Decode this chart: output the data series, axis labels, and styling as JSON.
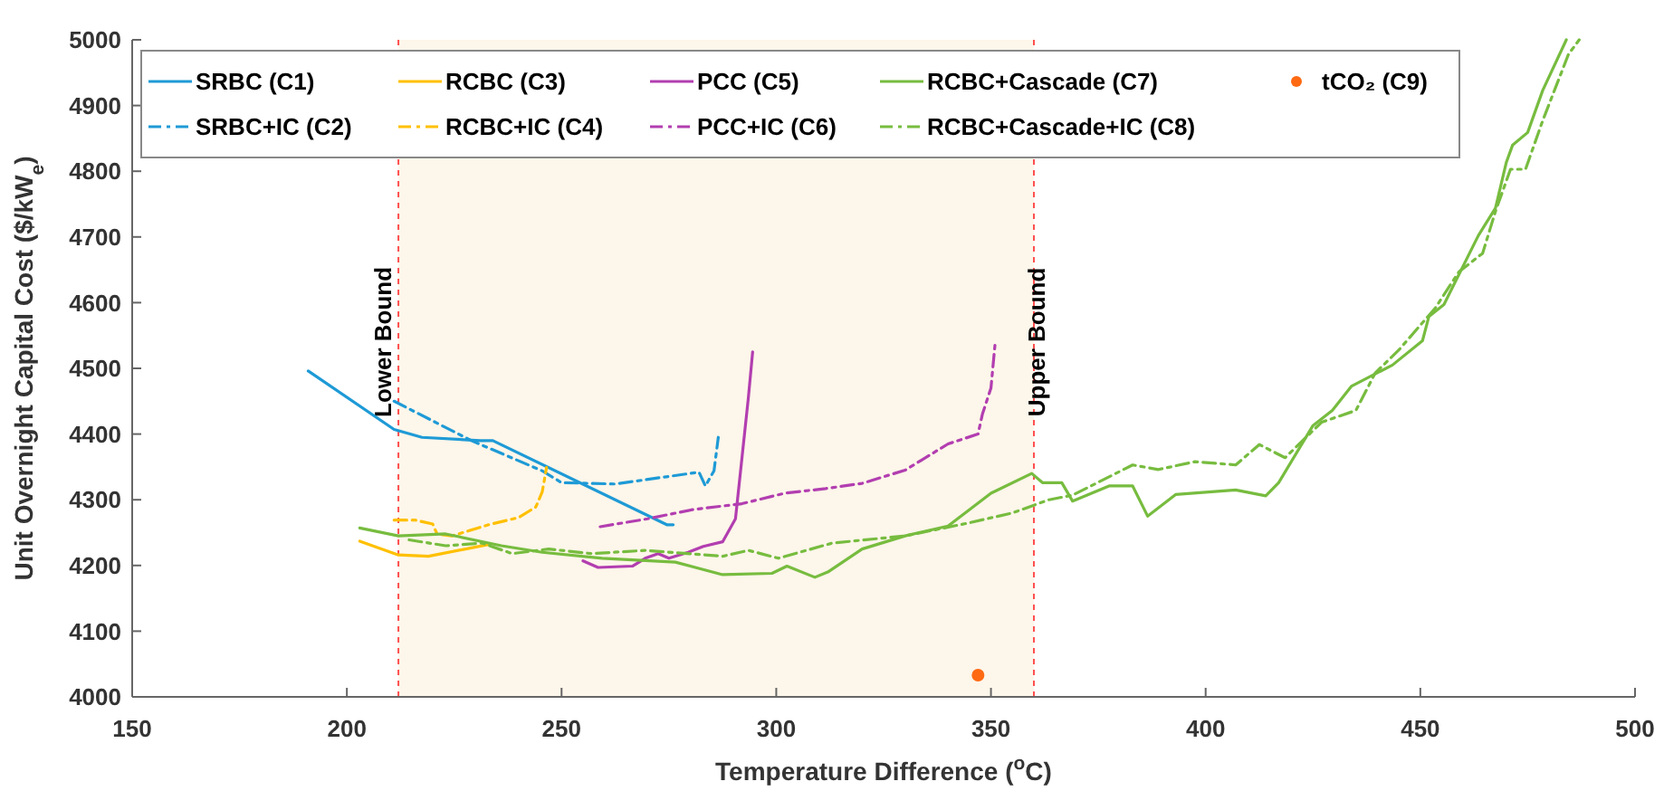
{
  "chart_data": {
    "type": "line",
    "xlabel": "Temperature Difference ($^{o}$C)",
    "ylabel": "Unit Overnight Capital Cost ($/kW$_{e}$)",
    "xlim": [
      150,
      500
    ],
    "xticks": [
      150,
      200,
      250,
      300,
      350,
      400,
      450,
      500
    ],
    "ylim": [
      4000,
      5000
    ],
    "yticks": [
      4000,
      4100,
      4200,
      4300,
      4400,
      4500,
      4600,
      4700,
      4800,
      4900,
      5000
    ],
    "grid": false,
    "legend": "top",
    "marker": "none",
    "bands": [
      {
        "axis": "x",
        "from": 212,
        "to": 360,
        "color": "#fdf6ea"
      }
    ],
    "ref_lines": [
      {
        "axis": "x",
        "value": 212,
        "label": "Lower Bound",
        "color": "#ff5050",
        "line_style": "dashed"
      },
      {
        "axis": "x",
        "value": 360,
        "label": "Upper Bound",
        "color": "#ff5050",
        "line_style": "dashed"
      }
    ],
    "series": [
      {
        "name": "SRBC (C1)",
        "color": "#1e9ad6",
        "line_style": "solid",
        "x": [
          191,
          211,
          217.5,
          231,
          234,
          274.5,
          276
        ],
        "values": [
          4496,
          4407,
          4395,
          4390,
          4390,
          4262,
          4262
        ]
      },
      {
        "name": "SRBC+IC (C2)",
        "color": "#1e9ad6",
        "line_style": "dashed",
        "x": [
          211,
          229,
          245.5,
          250,
          262.5,
          282,
          283.5,
          285.5,
          286.5
        ],
        "values": [
          4450,
          4390,
          4344,
          4326,
          4324,
          4342,
          4321,
          4344,
          4395
        ]
      },
      {
        "name": "RCBC (C3)",
        "color": "#ffc000",
        "line_style": "solid",
        "x": [
          203,
          212,
          219,
          233
        ],
        "values": [
          4237,
          4216,
          4214,
          4232
        ]
      },
      {
        "name": "RCBC+IC (C4)",
        "color": "#ffc000",
        "line_style": "dashed",
        "x": [
          211,
          216,
          220,
          221,
          224.5,
          233,
          240,
          244,
          245.5,
          246.5
        ],
        "values": [
          4269,
          4269,
          4263,
          4248,
          4245,
          4262,
          4273,
          4289,
          4312,
          4349
        ]
      },
      {
        "name": "PCC (C5)",
        "color": "#b23eb0",
        "line_style": "solid",
        "x": [
          255,
          258.5,
          266.5,
          269.5,
          272.5,
          275,
          279.5,
          283,
          287.5,
          290.5,
          292,
          293.5,
          294.5
        ],
        "values": [
          4207,
          4197,
          4199,
          4211,
          4218,
          4211,
          4220,
          4229,
          4236,
          4271,
          4363,
          4455,
          4525
        ]
      },
      {
        "name": "PCC+IC (C6)",
        "color": "#b23eb0",
        "line_style": "dashed",
        "x": [
          259,
          270,
          280.5,
          292,
          302,
          311.5,
          320,
          330,
          340,
          347,
          348,
          350,
          351
        ],
        "values": [
          4259,
          4271,
          4285,
          4294,
          4310,
          4317,
          4325,
          4345,
          4385,
          4400,
          4430,
          4470,
          4540
        ]
      },
      {
        "name": "RCBC+Cascade (C7)",
        "color": "#77bc3f",
        "line_style": "solid",
        "x": [
          203,
          212,
          223,
          236,
          245.5,
          259.5,
          276.5,
          287.5,
          299,
          302.5,
          309,
          312,
          320,
          330,
          340,
          350,
          359.5,
          362,
          366.5,
          369,
          377.5,
          383,
          386.5,
          393,
          407,
          414,
          417,
          425,
          429.5,
          434,
          443.5,
          450.5,
          452,
          455.5,
          463.5,
          467.5,
          470,
          471.5,
          475,
          478.5,
          484
        ],
        "values": [
          4257,
          4245,
          4248,
          4230,
          4220,
          4211,
          4205,
          4186,
          4188,
          4199,
          4182,
          4190,
          4225,
          4245,
          4260,
          4310,
          4340,
          4326,
          4326,
          4298,
          4321,
          4321,
          4275,
          4308,
          4315,
          4306,
          4326,
          4413,
          4436,
          4473,
          4505,
          4542,
          4579,
          4597,
          4702,
          4744,
          4813,
          4840,
          4859,
          4923,
          5000
        ]
      },
      {
        "name": "RCBC+Cascade+IC (C8)",
        "color": "#77bc3f",
        "line_style": "dashed",
        "x": [
          214.5,
          223,
          231.5,
          238.5,
          247,
          257,
          269.5,
          287.5,
          293.5,
          300.5,
          313,
          330,
          345,
          355,
          363.5,
          369,
          383,
          389,
          397.5,
          407,
          412.5,
          418.5,
          427,
          435,
          439.5,
          445,
          453.5,
          459,
          464.5,
          467.5,
          471,
          474.5,
          478.5,
          484.5,
          487
        ],
        "values": [
          4239,
          4230,
          4234,
          4218,
          4225,
          4218,
          4223,
          4214,
          4223,
          4211,
          4234,
          4245,
          4265,
          4280,
          4300,
          4307,
          4353,
          4346,
          4358,
          4353,
          4384,
          4364,
          4418,
          4436,
          4493,
          4528,
          4592,
          4647,
          4675,
          4739,
          4803,
          4803,
          4877,
          4978,
          5000
        ]
      },
      {
        "name": "tCO₂ (C9)",
        "type": "scatter",
        "color": "#ff6a13",
        "marker": "circle",
        "x": [
          347
        ],
        "values": [
          4033
        ]
      }
    ]
  }
}
